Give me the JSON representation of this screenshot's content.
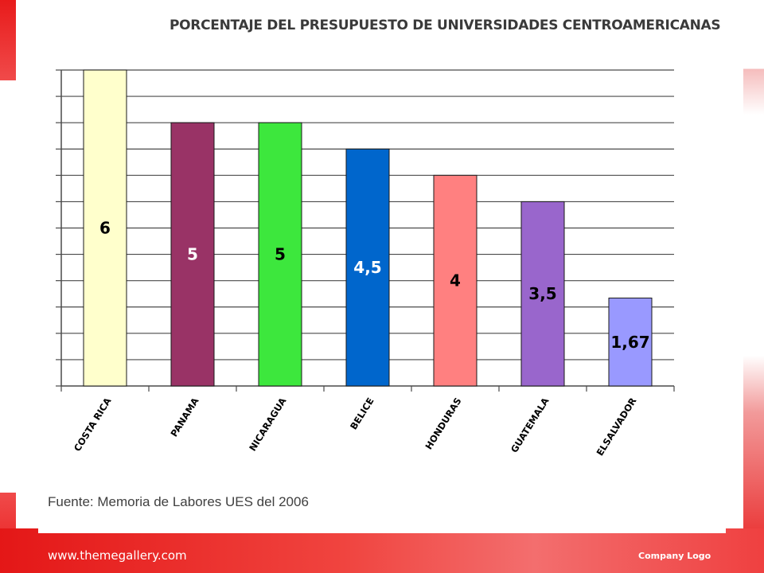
{
  "slide": {
    "source_note": "Fuente: Memoria de Labores UES del 2006",
    "footer_url": "www.themegallery.com",
    "footer_logo": "Company Logo"
  },
  "chart_data": {
    "type": "bar",
    "title": "PORCENTAJE DEL PRESUPUESTO DE UNIVERSIDADES CENTROAMERICANAS",
    "categories": [
      "COSTA RICA",
      "PANAMA",
      "NICARAGUA",
      "BELICE",
      "HONDURAS",
      "GUATEMALA",
      "ELSALVADOR"
    ],
    "values": [
      6,
      5,
      5,
      4.5,
      4,
      3.5,
      1.67
    ],
    "value_labels": [
      "6",
      "5",
      "5",
      "4,5",
      "4",
      "3,5",
      "1,67"
    ],
    "colors": [
      "#ffffcc",
      "#993366",
      "#3de73d",
      "#0066cc",
      "#ff8080",
      "#9966cc",
      "#9999ff"
    ],
    "label_colors": [
      "#000000",
      "#ffffff",
      "#000000",
      "#ffffff",
      "#000000",
      "#000000",
      "#000000"
    ],
    "ylim": [
      0,
      6
    ],
    "grid": true,
    "legend": "none"
  }
}
